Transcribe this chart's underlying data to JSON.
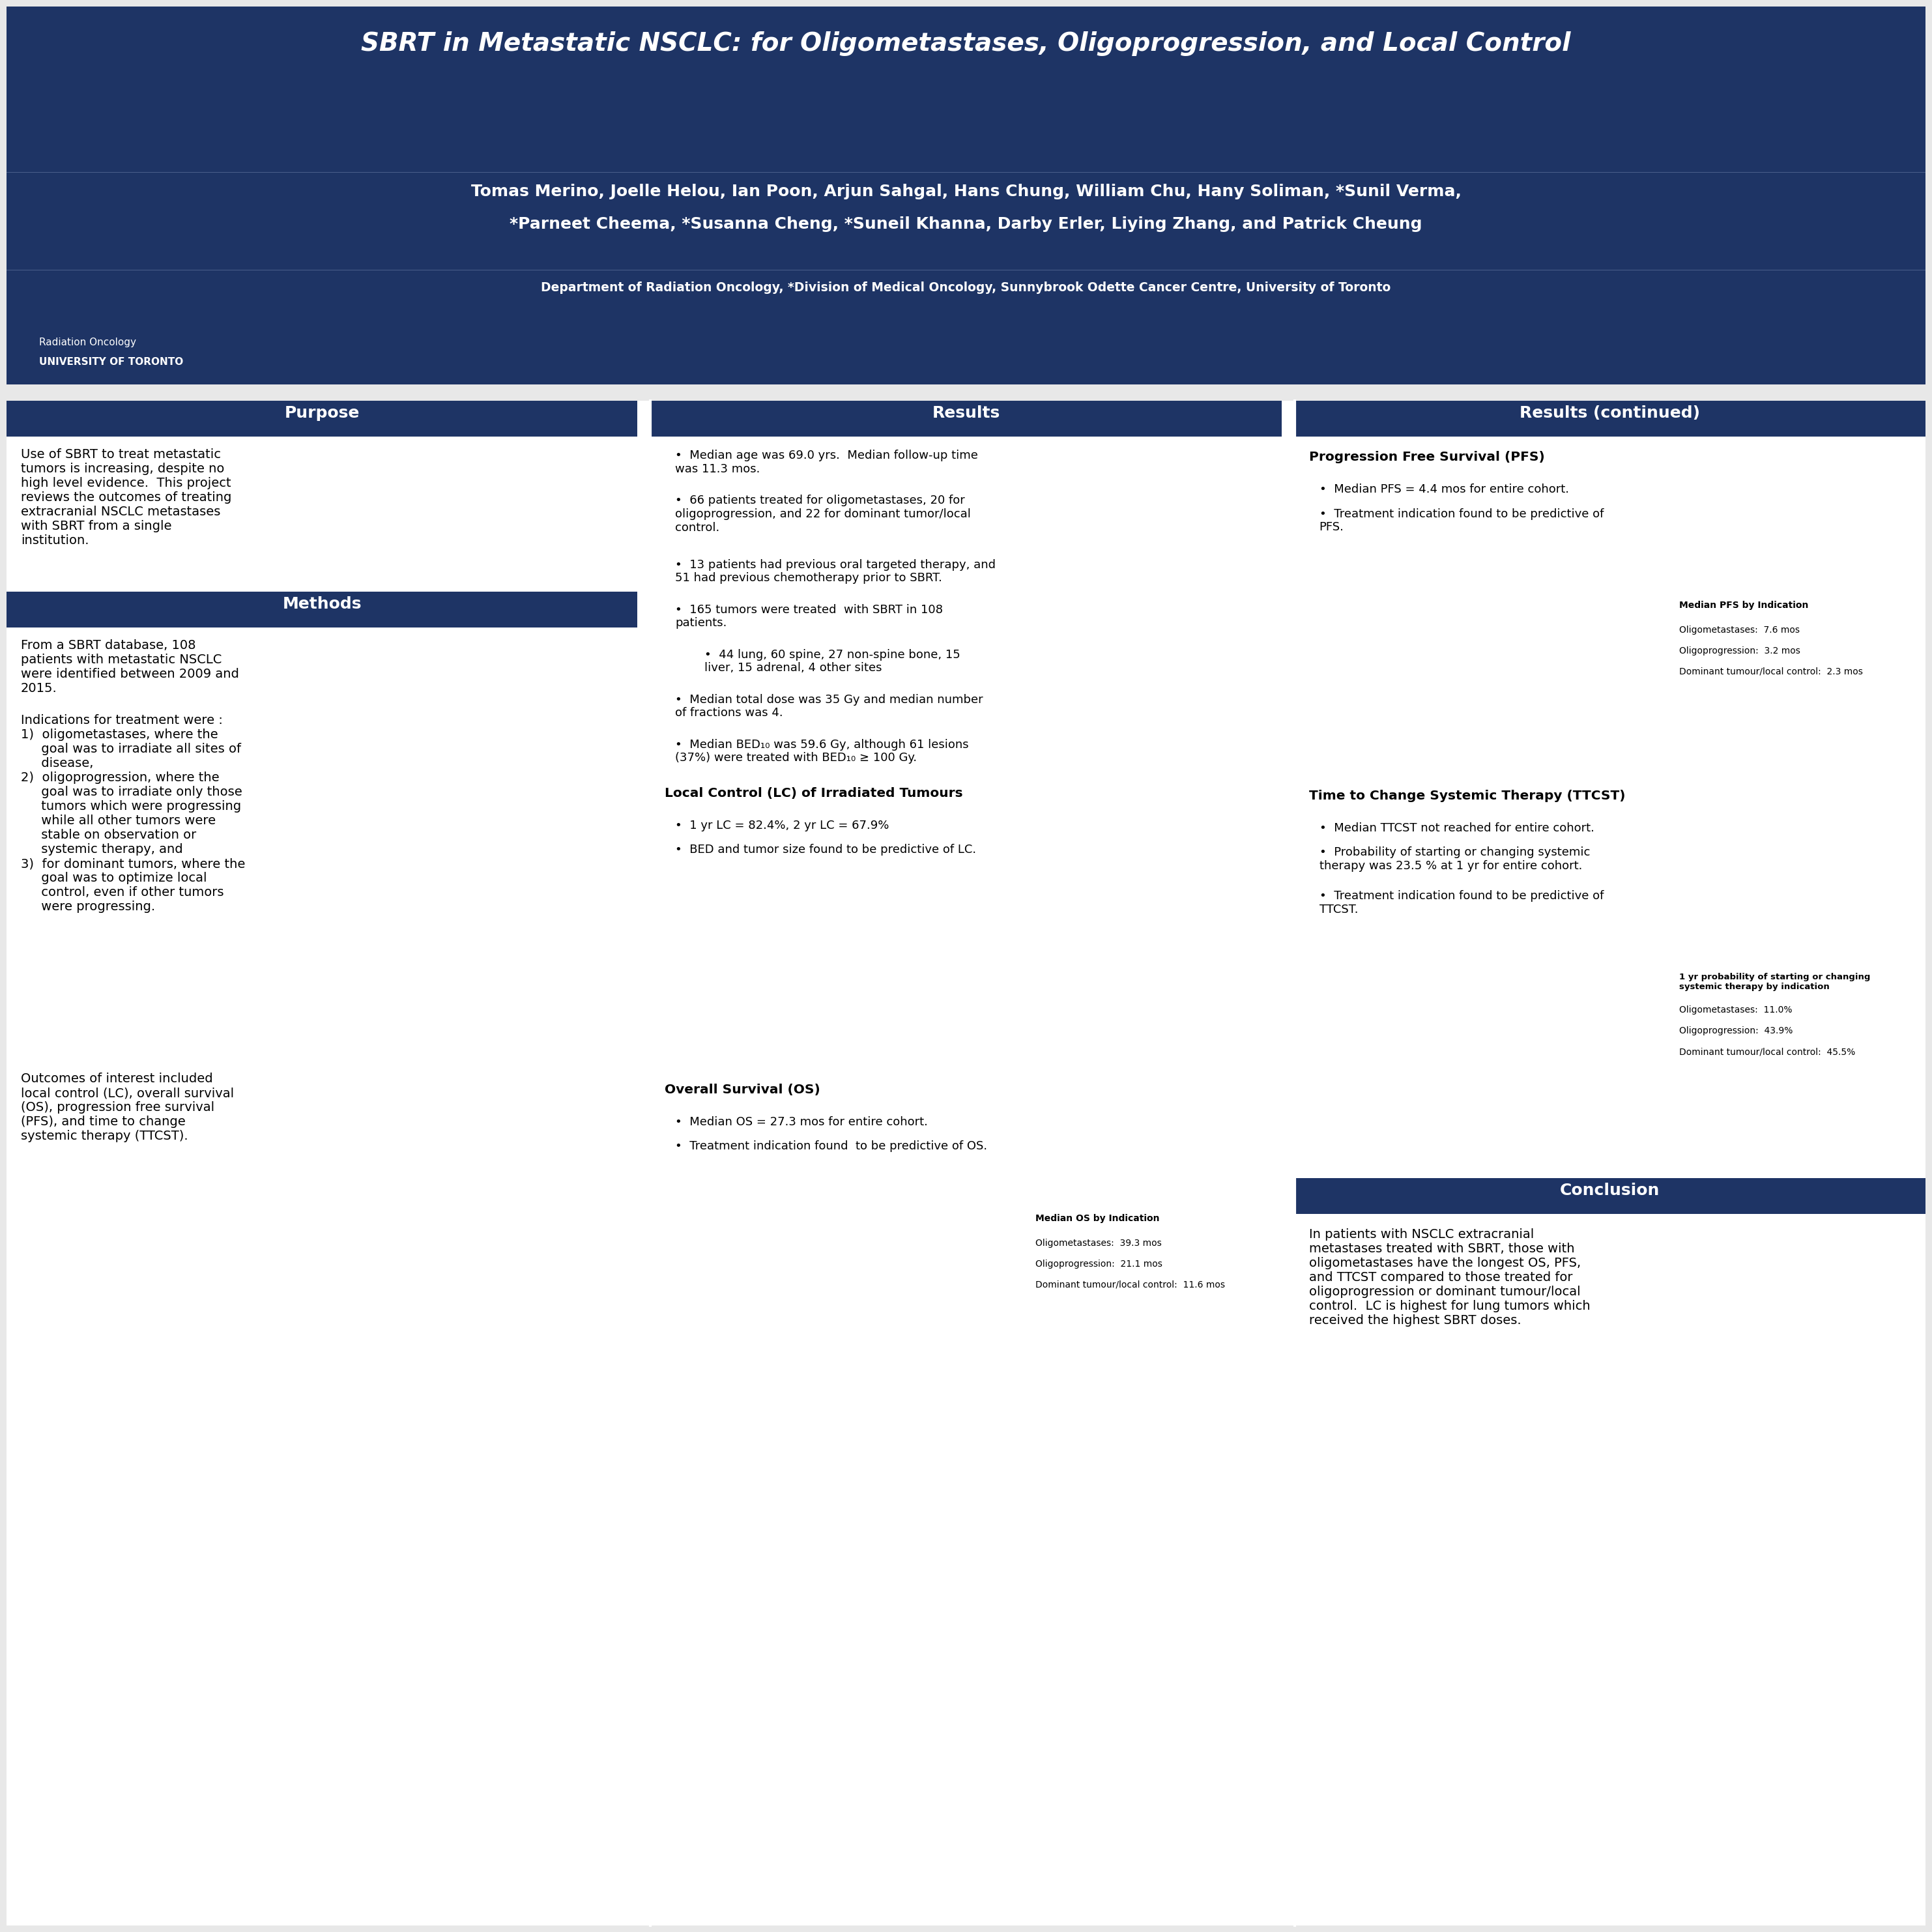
{
  "title": "SBRT in Metastatic NSCLC: for Oligometastases, Oligoprogression, and Local Control",
  "authors_line1": "Tomas Merino, Joelle Helou, Ian Poon, Arjun Sahgal, Hans Chung, William Chu, Hany Soliman, *Sunil Verma,",
  "authors_line2": "*Parneet Cheema, *Susanna Cheng, *Suneil Khanna, Darby Erler, Liying Zhang, and Patrick Cheung",
  "affiliation": "Department of Radiation Oncology, *Division of Medical Oncology, Sunnybrook Odette Cancer Centre, University of Toronto",
  "header_bg": "#1e3465",
  "section_header_bg": "#1e3465",
  "body_bg": "#f0f0f0",
  "purpose_header": "Purpose",
  "purpose_text": "Use of SBRT to treat metastatic\ntumors is increasing, despite no\nhigh level evidence.  This project\nreviews the outcomes of treating\nextracranial NSCLC metastases\nwith SBRT from a single\ninstitution.",
  "methods_header": "Methods",
  "methods_text1": "From a SBRT database, 108\npatients with metastatic NSCLC\nwere identified between 2009 and\n2015.",
  "methods_text2": "Indications for treatment were :\n1)  oligometastases, where the\n     goal was to irradiate all sites of\n     disease,\n2)  oligoprogression, where the\n     goal was to irradiate only those\n     tumors which were progressing\n     while all other tumors were\n     stable on observation or\n     systemic therapy, and\n3)  for dominant tumors, where the\n     goal was to optimize local\n     control, even if other tumors\n     were progressing.",
  "methods_text3": "Outcomes of interest included\nlocal control (LC), overall survival\n(OS), progression free survival\n(PFS), and time to change\nsystemic therapy (TTCST).",
  "results_header": "Results",
  "results_bullets": [
    "Median age was 69.0 yrs.  Median follow-up time\nwas 11.3 mos.",
    "66 patients treated for oligometastases, 20 for\noligoprogression, and 22 for dominant tumor/local\ncontrol.",
    "13 patients had previous oral targeted therapy, and\n51 had previous chemotherapy prior to SBRT.",
    "165 tumors were treated  with SBRT in 108\npatients.",
    "44 lung, 60 spine, 27 non-spine bone, 15\nliver, 15 adrenal, 4 other sites",
    "Median total dose was 35 Gy and median number\nof fractions was 4.",
    "Median BED₁₀ was 59.6 Gy, although 61 lesions\n(37%) were treated with BED₁₀ ≥ 100 Gy."
  ],
  "lc_header": "Local Control (LC) of Irradiated Tumours",
  "lc_bullets": [
    "1 yr LC = 82.4%, 2 yr LC = 67.9%",
    "BED and tumor size found to be predictive of LC."
  ],
  "os_header": "Overall Survival (OS)",
  "os_bullets": [
    "Median OS = 27.3 mos for entire cohort.",
    "Treatment indication found  to be predictive of OS."
  ],
  "os_legend_title": "Median OS by Indication",
  "os_legend": [
    "Oligometastases:  39.3 mos",
    "Oligoprogression:  21.1 mos",
    "Dominant tumour/local control:  11.6 mos"
  ],
  "results_cont_header": "Results (continued)",
  "pfs_header": "Progression Free Survival (PFS)",
  "pfs_bullets": [
    "Median PFS = 4.4 mos for entire cohort.",
    "Treatment indication found to be predictive of\nPFS."
  ],
  "pfs_legend_title": "Median PFS by Indication",
  "pfs_legend": [
    "Oligometastases:  7.6 mos",
    "Oligoprogression:  3.2 mos",
    "Dominant tumour/local control:  2.3 mos"
  ],
  "ttcst_header": "Time to Change Systemic Therapy (TTCST)",
  "ttcst_bullets": [
    "Median TTCST not reached for entire cohort.",
    "Probability of starting or changing systemic\ntherapy was 23.5 % at 1 yr for entire cohort.",
    "Treatment indication found to be predictive of\nTTCST."
  ],
  "ttcst_legend_title": "1 yr probability of starting or changing\nsystemic therapy by indication",
  "ttcst_legend": [
    "Oligometastases:  11.0%",
    "Oligoprogression:  43.9%",
    "Dominant tumour/local control:  45.5%"
  ],
  "conclusion_header": "Conclusion",
  "conclusion_text": "In patients with NSCLC extracranial\nmetastases treated with SBRT, those with\noligometastases have the longest OS, PFS,\nand TTCST compared to those treated for\noligoprogression or dominant tumour/local\ncontrol.  LC is highest for lung tumors which\nreceived the highest SBRT doses."
}
